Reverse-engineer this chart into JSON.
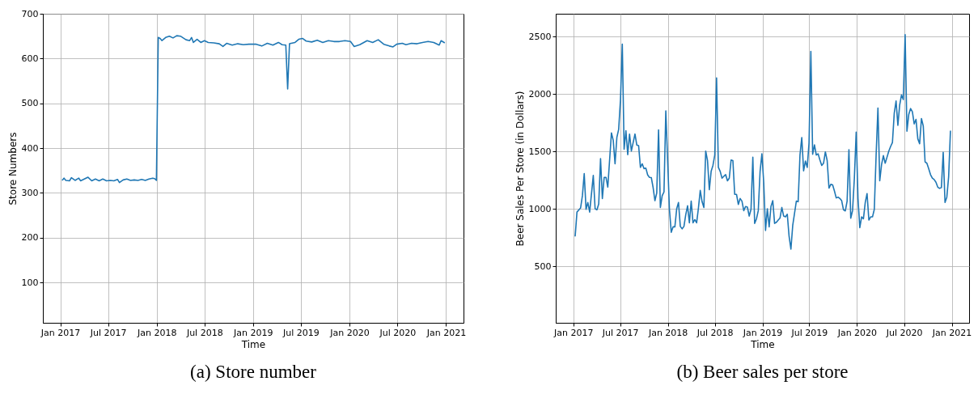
{
  "chart_data": [
    {
      "type": "line",
      "title": "(a) Store number",
      "xlabel": "Time",
      "ylabel": "Store Numbers",
      "grid": true,
      "xlim": [
        "2016-10-27",
        "2021-03-08"
      ],
      "ylim": [
        10,
        700
      ],
      "xticks": [
        {
          "value": "2017-01-01",
          "label": "Jan 2017"
        },
        {
          "value": "2017-07-01",
          "label": "Jul 2017"
        },
        {
          "value": "2018-01-01",
          "label": "Jan 2018"
        },
        {
          "value": "2018-07-01",
          "label": "Jul 2018"
        },
        {
          "value": "2019-01-01",
          "label": "Jan 2019"
        },
        {
          "value": "2019-07-01",
          "label": "Jul 2019"
        },
        {
          "value": "2020-01-01",
          "label": "Jan 2020"
        },
        {
          "value": "2020-07-01",
          "label": "Jul 2020"
        },
        {
          "value": "2021-01-01",
          "label": "Jan 2021"
        }
      ],
      "yticks": [
        100,
        200,
        300,
        400,
        500,
        600,
        700
      ],
      "series": [
        {
          "color": "#1f77b4",
          "x": [
            "2017-01-08",
            "2017-01-15",
            "2017-01-22",
            "2017-02-05",
            "2017-02-12",
            "2017-02-26",
            "2017-03-12",
            "2017-03-19",
            "2017-04-02",
            "2017-04-16",
            "2017-04-30",
            "2017-05-14",
            "2017-05-28",
            "2017-06-11",
            "2017-06-25",
            "2017-07-09",
            "2017-07-23",
            "2017-08-06",
            "2017-08-13",
            "2017-08-27",
            "2017-09-10",
            "2017-09-24",
            "2017-10-08",
            "2017-10-22",
            "2017-11-05",
            "2017-11-19",
            "2017-12-03",
            "2017-12-17",
            "2017-12-24",
            "2017-12-31",
            "2018-01-07",
            "2018-01-14",
            "2018-01-21",
            "2018-02-04",
            "2018-02-18",
            "2018-03-04",
            "2018-03-18",
            "2018-04-01",
            "2018-04-22",
            "2018-05-06",
            "2018-05-13",
            "2018-05-20",
            "2018-06-03",
            "2018-06-17",
            "2018-07-01",
            "2018-07-15",
            "2018-08-05",
            "2018-08-26",
            "2018-09-09",
            "2018-09-23",
            "2018-10-14",
            "2018-11-04",
            "2018-11-25",
            "2018-12-16",
            "2019-01-13",
            "2019-02-03",
            "2019-02-24",
            "2019-03-17",
            "2019-04-07",
            "2019-04-21",
            "2019-05-05",
            "2019-05-12",
            "2019-05-19",
            "2019-06-09",
            "2019-06-23",
            "2019-07-07",
            "2019-07-21",
            "2019-08-11",
            "2019-09-01",
            "2019-09-22",
            "2019-10-13",
            "2019-11-03",
            "2019-11-24",
            "2019-12-15",
            "2020-01-05",
            "2020-01-19",
            "2020-02-09",
            "2020-03-08",
            "2020-03-29",
            "2020-04-19",
            "2020-05-10",
            "2020-05-31",
            "2020-06-14",
            "2020-06-28",
            "2020-07-19",
            "2020-08-02",
            "2020-08-23",
            "2020-09-13",
            "2020-10-04",
            "2020-10-25",
            "2020-11-15",
            "2020-12-06",
            "2020-12-13",
            "2020-12-27"
          ],
          "values": [
            328,
            333,
            328,
            327,
            334,
            328,
            333,
            327,
            331,
            335,
            327,
            331,
            327,
            331,
            327,
            328,
            327,
            330,
            323,
            329,
            331,
            328,
            329,
            328,
            330,
            328,
            331,
            333,
            332,
            328,
            647,
            645,
            640,
            647,
            650,
            646,
            651,
            650,
            642,
            640,
            647,
            636,
            643,
            636,
            640,
            636,
            635,
            633,
            627,
            634,
            630,
            633,
            631,
            632,
            632,
            628,
            634,
            630,
            636,
            631,
            630,
            532,
            633,
            636,
            643,
            645,
            639,
            637,
            641,
            636,
            640,
            638,
            638,
            640,
            638,
            627,
            631,
            640,
            636,
            642,
            632,
            628,
            626,
            632,
            634,
            631,
            634,
            633,
            636,
            638,
            636,
            630,
            640,
            635
          ]
        }
      ]
    },
    {
      "type": "line",
      "title": "(b) Beer sales per store",
      "xlabel": "Time",
      "ylabel": "Beer Sales Per Store (in Dollars)",
      "grid": true,
      "xlim": [
        "2016-10-25",
        "2021-03-09"
      ],
      "ylim": [
        10,
        2700
      ],
      "xticks": [
        {
          "value": "2017-01-01",
          "label": "Jan 2017"
        },
        {
          "value": "2017-07-01",
          "label": "Jul 2017"
        },
        {
          "value": "2018-01-01",
          "label": "Jan 2018"
        },
        {
          "value": "2018-07-01",
          "label": "Jul 2018"
        },
        {
          "value": "2019-01-01",
          "label": "Jan 2019"
        },
        {
          "value": "2019-07-01",
          "label": "Jul 2019"
        },
        {
          "value": "2020-01-01",
          "label": "Jan 2020"
        },
        {
          "value": "2020-07-01",
          "label": "Jul 2020"
        },
        {
          "value": "2021-01-01",
          "label": "Jan 2021"
        }
      ],
      "yticks": [
        500,
        1000,
        1500,
        2000,
        2500
      ],
      "series": [
        {
          "color": "#1f77b4",
          "x": [
            "2017-01-08",
            "2017-01-15",
            "2017-01-29",
            "2017-02-05",
            "2017-02-12",
            "2017-02-19",
            "2017-02-26",
            "2017-03-05",
            "2017-03-19",
            "2017-03-26",
            "2017-04-02",
            "2017-04-09",
            "2017-04-16",
            "2017-04-23",
            "2017-04-30",
            "2017-05-07",
            "2017-05-14",
            "2017-05-28",
            "2017-06-04",
            "2017-06-11",
            "2017-06-18",
            "2017-06-25",
            "2017-07-02",
            "2017-07-09",
            "2017-07-16",
            "2017-07-23",
            "2017-07-30",
            "2017-08-06",
            "2017-08-13",
            "2017-08-27",
            "2017-09-03",
            "2017-09-10",
            "2017-09-17",
            "2017-09-24",
            "2017-10-01",
            "2017-10-08",
            "2017-10-15",
            "2017-10-22",
            "2017-10-29",
            "2017-11-05",
            "2017-11-12",
            "2017-11-19",
            "2017-11-26",
            "2017-12-03",
            "2017-12-10",
            "2017-12-17",
            "2017-12-24",
            "2018-01-07",
            "2018-01-14",
            "2018-01-21",
            "2018-01-28",
            "2018-02-04",
            "2018-02-11",
            "2018-02-18",
            "2018-02-25",
            "2018-03-04",
            "2018-03-11",
            "2018-03-18",
            "2018-03-25",
            "2018-04-01",
            "2018-04-08",
            "2018-04-15",
            "2018-04-22",
            "2018-04-29",
            "2018-05-06",
            "2018-05-13",
            "2018-05-20",
            "2018-05-27",
            "2018-06-03",
            "2018-06-10",
            "2018-06-17",
            "2018-06-24",
            "2018-07-01",
            "2018-07-08",
            "2018-07-15",
            "2018-07-22",
            "2018-07-29",
            "2018-08-05",
            "2018-08-12",
            "2018-08-19",
            "2018-08-26",
            "2018-09-02",
            "2018-09-09",
            "2018-09-16",
            "2018-09-23",
            "2018-09-30",
            "2018-10-07",
            "2018-10-14",
            "2018-10-21",
            "2018-10-28",
            "2018-11-04",
            "2018-11-11",
            "2018-11-18",
            "2018-11-25",
            "2018-12-02",
            "2018-12-09",
            "2018-12-16",
            "2018-12-23",
            "2018-12-30",
            "2019-01-06",
            "2019-01-13",
            "2019-01-20",
            "2019-01-27",
            "2019-02-03",
            "2019-02-10",
            "2019-02-17",
            "2019-02-24",
            "2019-03-03",
            "2019-03-10",
            "2019-03-17",
            "2019-03-24",
            "2019-03-31",
            "2019-04-07",
            "2019-04-14",
            "2019-04-21",
            "2019-04-28",
            "2019-05-05",
            "2019-05-12",
            "2019-05-19",
            "2019-05-26",
            "2019-06-02",
            "2019-06-09",
            "2019-06-16",
            "2019-06-23",
            "2019-06-30",
            "2019-07-07",
            "2019-07-14",
            "2019-07-21",
            "2019-07-28",
            "2019-08-04",
            "2019-08-11",
            "2019-08-18",
            "2019-08-25",
            "2019-09-01",
            "2019-09-08",
            "2019-09-15",
            "2019-09-22",
            "2019-09-29",
            "2019-10-06",
            "2019-10-13",
            "2019-10-20",
            "2019-10-27",
            "2019-11-03",
            "2019-11-10",
            "2019-11-17",
            "2019-11-24",
            "2019-12-01",
            "2019-12-08",
            "2019-12-15",
            "2019-12-22",
            "2019-12-29",
            "2020-01-05",
            "2020-01-12",
            "2020-01-19",
            "2020-01-26",
            "2020-02-02",
            "2020-02-09",
            "2020-02-16",
            "2020-02-23",
            "2020-03-01",
            "2020-03-08",
            "2020-03-15",
            "2020-03-22",
            "2020-03-29",
            "2020-04-05",
            "2020-04-12",
            "2020-04-19",
            "2020-04-26",
            "2020-05-03",
            "2020-05-10",
            "2020-05-17",
            "2020-05-24",
            "2020-05-31",
            "2020-06-07",
            "2020-06-14",
            "2020-06-21",
            "2020-06-28",
            "2020-07-05",
            "2020-07-12",
            "2020-07-19",
            "2020-07-26",
            "2020-08-02",
            "2020-08-09",
            "2020-08-16",
            "2020-08-23",
            "2020-08-30",
            "2020-09-06",
            "2020-09-13",
            "2020-09-20",
            "2020-09-27",
            "2020-10-04",
            "2020-10-11",
            "2020-10-18",
            "2020-10-25",
            "2020-11-01",
            "2020-11-08",
            "2020-11-15",
            "2020-11-22",
            "2020-11-29",
            "2020-12-06",
            "2020-12-13",
            "2020-12-20",
            "2020-12-27"
          ],
          "values": [
            762,
            974,
            1010,
            1116,
            1309,
            998,
            1057,
            974,
            1293,
            1003,
            993,
            1045,
            1439,
            1092,
            1276,
            1276,
            1191,
            1663,
            1599,
            1394,
            1623,
            1694,
            1953,
            2436,
            1521,
            1682,
            1474,
            1653,
            1505,
            1653,
            1557,
            1552,
            1363,
            1394,
            1352,
            1356,
            1297,
            1276,
            1274,
            1187,
            1073,
            1139,
            1689,
            1014,
            1116,
            1149,
            1854,
            998,
            798,
            845,
            845,
            1003,
            1057,
            849,
            828,
            849,
            951,
            1029,
            880,
            1069,
            880,
            908,
            880,
            1010,
            1163,
            1064,
            1014,
            1505,
            1422,
            1168,
            1328,
            1380,
            1470,
            2142,
            1363,
            1328,
            1269,
            1285,
            1300,
            1246,
            1269,
            1427,
            1422,
            1128,
            1128,
            1040,
            1092,
            1069,
            986,
            1022,
            1017,
            939,
            998,
            1451,
            875,
            915,
            986,
            1328,
            1481,
            1234,
            814,
            1003,
            845,
            1022,
            1073,
            875,
            885,
            904,
            922,
            1014,
            939,
            932,
            955,
            762,
            651,
            857,
            963,
            1069,
            1064,
            1470,
            1623,
            1333,
            1418,
            1363,
            1576,
            2373,
            1477,
            1559,
            1470,
            1481,
            1427,
            1380,
            1399,
            1498,
            1422,
            1182,
            1215,
            1210,
            1158,
            1097,
            1104,
            1092,
            1073,
            993,
            984,
            1069,
            1517,
            920,
            986,
            1269,
            1670,
            1092,
            838,
            932,
            915,
            1057,
            1135,
            904,
            932,
            932,
            998,
            1470,
            1880,
            1246,
            1387,
            1465,
            1399,
            1451,
            1505,
            1545,
            1580,
            1835,
            1941,
            1729,
            1906,
            1993,
            1953,
            2519,
            1677,
            1823,
            1875,
            1847,
            1741,
            1781,
            1611,
            1569,
            1788,
            1724,
            1411,
            1399,
            1352,
            1300,
            1269,
            1257,
            1234,
            1191,
            1180,
            1187,
            1493,
            1057,
            1104,
            1281,
            1682
          ]
        }
      ]
    }
  ]
}
